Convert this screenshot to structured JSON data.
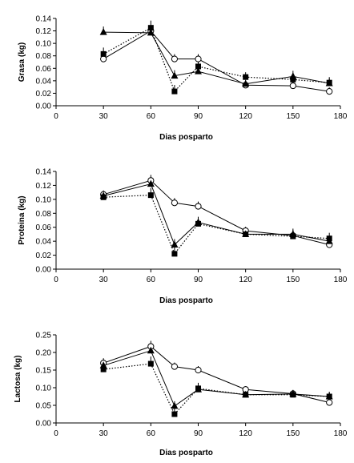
{
  "chart_data": [
    {
      "type": "line",
      "xlabel": "Dias posparto",
      "ylabel": "Grasa (kg)",
      "xlim": [
        0,
        180
      ],
      "ylim": [
        0,
        0.14
      ],
      "xticks": [
        0,
        30,
        60,
        90,
        120,
        150,
        180
      ],
      "yticks": [
        0,
        0.02,
        0.04,
        0.06,
        0.08,
        0.1,
        0.12,
        0.14
      ],
      "ytick_labels": [
        "0.00",
        "0.02",
        "0.04",
        "0.06",
        "0.08",
        "0.10",
        "0.12",
        "0.14"
      ],
      "series": [
        {
          "marker": "circle-open",
          "line": "solid",
          "x": [
            30,
            60,
            75,
            90,
            120,
            150,
            173
          ],
          "y": [
            0.075,
            0.12,
            0.075,
            0.075,
            0.033,
            0.032,
            0.023
          ]
        },
        {
          "marker": "triangle-filled",
          "line": "solid",
          "x": [
            30,
            60,
            75,
            90,
            120,
            150,
            173
          ],
          "y": [
            0.118,
            0.117,
            0.048,
            0.055,
            0.035,
            0.047,
            0.036
          ]
        },
        {
          "marker": "square-filled",
          "line": "dotted",
          "x": [
            30,
            60,
            75,
            90,
            120,
            150,
            173
          ],
          "y": [
            0.083,
            0.125,
            0.023,
            0.063,
            0.046,
            0.042,
            0.037
          ]
        }
      ]
    },
    {
      "type": "line",
      "xlabel": "Dias posparto",
      "ylabel": "Proteina (kg)",
      "xlim": [
        0,
        180
      ],
      "ylim": [
        0,
        0.14
      ],
      "xticks": [
        0,
        30,
        60,
        90,
        120,
        150,
        180
      ],
      "yticks": [
        0,
        0.02,
        0.04,
        0.06,
        0.08,
        0.1,
        0.12,
        0.14
      ],
      "ytick_labels": [
        "0.00",
        "0.02",
        "0.04",
        "0.06",
        "0.08",
        "0.10",
        "0.12",
        "0.14"
      ],
      "series": [
        {
          "marker": "circle-open",
          "line": "solid",
          "x": [
            30,
            60,
            75,
            90,
            120,
            150,
            173
          ],
          "y": [
            0.107,
            0.127,
            0.095,
            0.09,
            0.055,
            0.048,
            0.035
          ]
        },
        {
          "marker": "triangle-filled",
          "line": "solid",
          "x": [
            30,
            60,
            75,
            90,
            120,
            150,
            173
          ],
          "y": [
            0.105,
            0.122,
            0.035,
            0.067,
            0.05,
            0.05,
            0.04
          ]
        },
        {
          "marker": "square-filled",
          "line": "dotted",
          "x": [
            30,
            60,
            75,
            90,
            120,
            150,
            173
          ],
          "y": [
            0.103,
            0.106,
            0.022,
            0.065,
            0.05,
            0.047,
            0.044
          ]
        }
      ]
    },
    {
      "type": "line",
      "xlabel": "Dias posparto",
      "ylabel": "Lactosa (kg)",
      "xlim": [
        0,
        180
      ],
      "ylim": [
        0,
        0.25
      ],
      "xticks": [
        0,
        30,
        60,
        90,
        120,
        150,
        180
      ],
      "yticks": [
        0,
        0.05,
        0.1,
        0.15,
        0.2,
        0.25
      ],
      "ytick_labels": [
        "0.00",
        "0.05",
        "0.10",
        "0.15",
        "0.20",
        "0.25"
      ],
      "series": [
        {
          "marker": "circle-open",
          "line": "solid",
          "x": [
            30,
            60,
            75,
            90,
            120,
            150,
            173
          ],
          "y": [
            0.17,
            0.217,
            0.16,
            0.15,
            0.095,
            0.083,
            0.058
          ]
        },
        {
          "marker": "triangle-filled",
          "line": "solid",
          "x": [
            30,
            60,
            75,
            90,
            120,
            150,
            173
          ],
          "y": [
            0.163,
            0.205,
            0.048,
            0.095,
            0.08,
            0.082,
            0.075
          ]
        },
        {
          "marker": "square-filled",
          "line": "dotted",
          "x": [
            30,
            60,
            75,
            90,
            120,
            150,
            173
          ],
          "y": [
            0.152,
            0.168,
            0.025,
            0.098,
            0.08,
            0.08,
            0.075
          ]
        }
      ]
    }
  ]
}
